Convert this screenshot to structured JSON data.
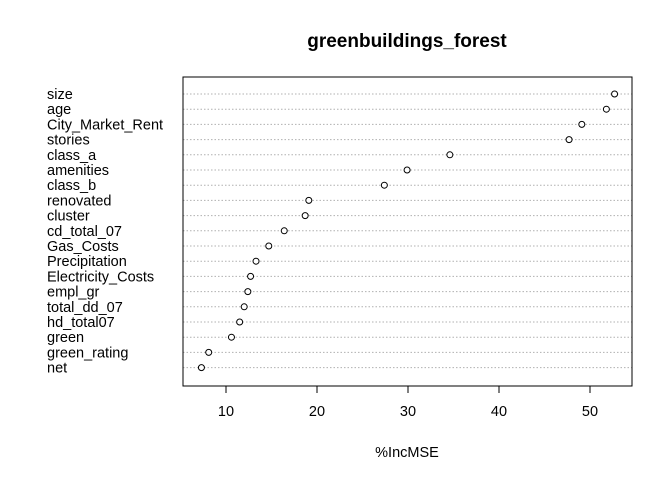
{
  "chart_data": {
    "type": "dotchart",
    "title": "greenbuildings_forest",
    "xlabel": "%IncMSE",
    "ylabel": "",
    "xlim": [
      6.5,
      54
    ],
    "xticks": [
      10,
      20,
      30,
      40,
      50
    ],
    "grid": "dotted horizontal lines per variable",
    "points": [
      {
        "label": "size",
        "value": 52.7
      },
      {
        "label": "age",
        "value": 51.8
      },
      {
        "label": "City_Market_Rent",
        "value": 49.1
      },
      {
        "label": "stories",
        "value": 47.7
      },
      {
        "label": "class_a",
        "value": 34.6
      },
      {
        "label": "amenities",
        "value": 29.9
      },
      {
        "label": "class_b",
        "value": 27.4
      },
      {
        "label": "renovated",
        "value": 19.1
      },
      {
        "label": "cluster",
        "value": 18.7
      },
      {
        "label": "cd_total_07",
        "value": 16.4
      },
      {
        "label": "Gas_Costs",
        "value": 14.7
      },
      {
        "label": "Precipitation",
        "value": 13.3
      },
      {
        "label": "Electricity_Costs",
        "value": 12.7
      },
      {
        "label": "empl_gr",
        "value": 12.4
      },
      {
        "label": "total_dd_07",
        "value": 12.0
      },
      {
        "label": "hd_total07",
        "value": 11.5
      },
      {
        "label": "green",
        "value": 10.6
      },
      {
        "label": "green_rating",
        "value": 8.1
      },
      {
        "label": "net",
        "value": 7.3
      }
    ]
  }
}
